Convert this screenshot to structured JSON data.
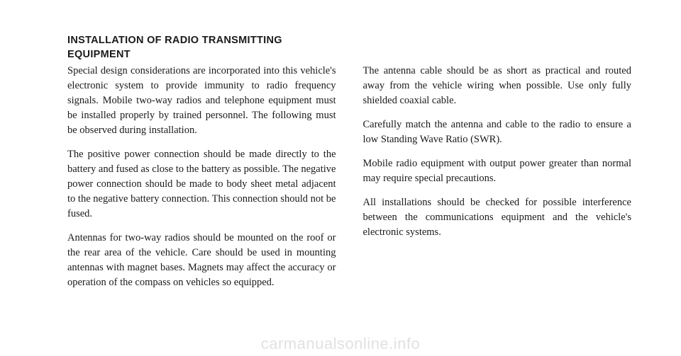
{
  "heading_line1": "INSTALLATION OF RADIO TRANSMITTING",
  "heading_line2": "EQUIPMENT",
  "left": {
    "p1": "Special design considerations are incorporated into this vehicle's electronic system to provide immunity to radio frequency signals. Mobile two-way radios and telephone equipment must be installed properly by trained personnel. The following must be observed during installation.",
    "p2": "The positive power connection should be made directly to the battery and fused as close to the battery as possible. The negative power connection should be made to body sheet metal adjacent to the negative battery connection. This connection should not be fused.",
    "p3": "Antennas for two-way radios should be mounted on the roof or the rear area of the vehicle. Care should be used in mounting antennas with magnet bases. Magnets may affect the accuracy or operation of the compass on vehicles so equipped."
  },
  "right": {
    "p1": "The antenna cable should be as short as practical and routed away from the vehicle wiring when possible. Use only fully shielded coaxial cable.",
    "p2": "Carefully match the antenna and cable to the radio to ensure a low Standing Wave Ratio (SWR).",
    "p3": "Mobile radio equipment with output power greater than normal may require special precautions.",
    "p4": "All installations should be checked for possible interference between the communications equipment and the vehicle's electronic systems."
  },
  "watermark": "carmanualsonline.info"
}
